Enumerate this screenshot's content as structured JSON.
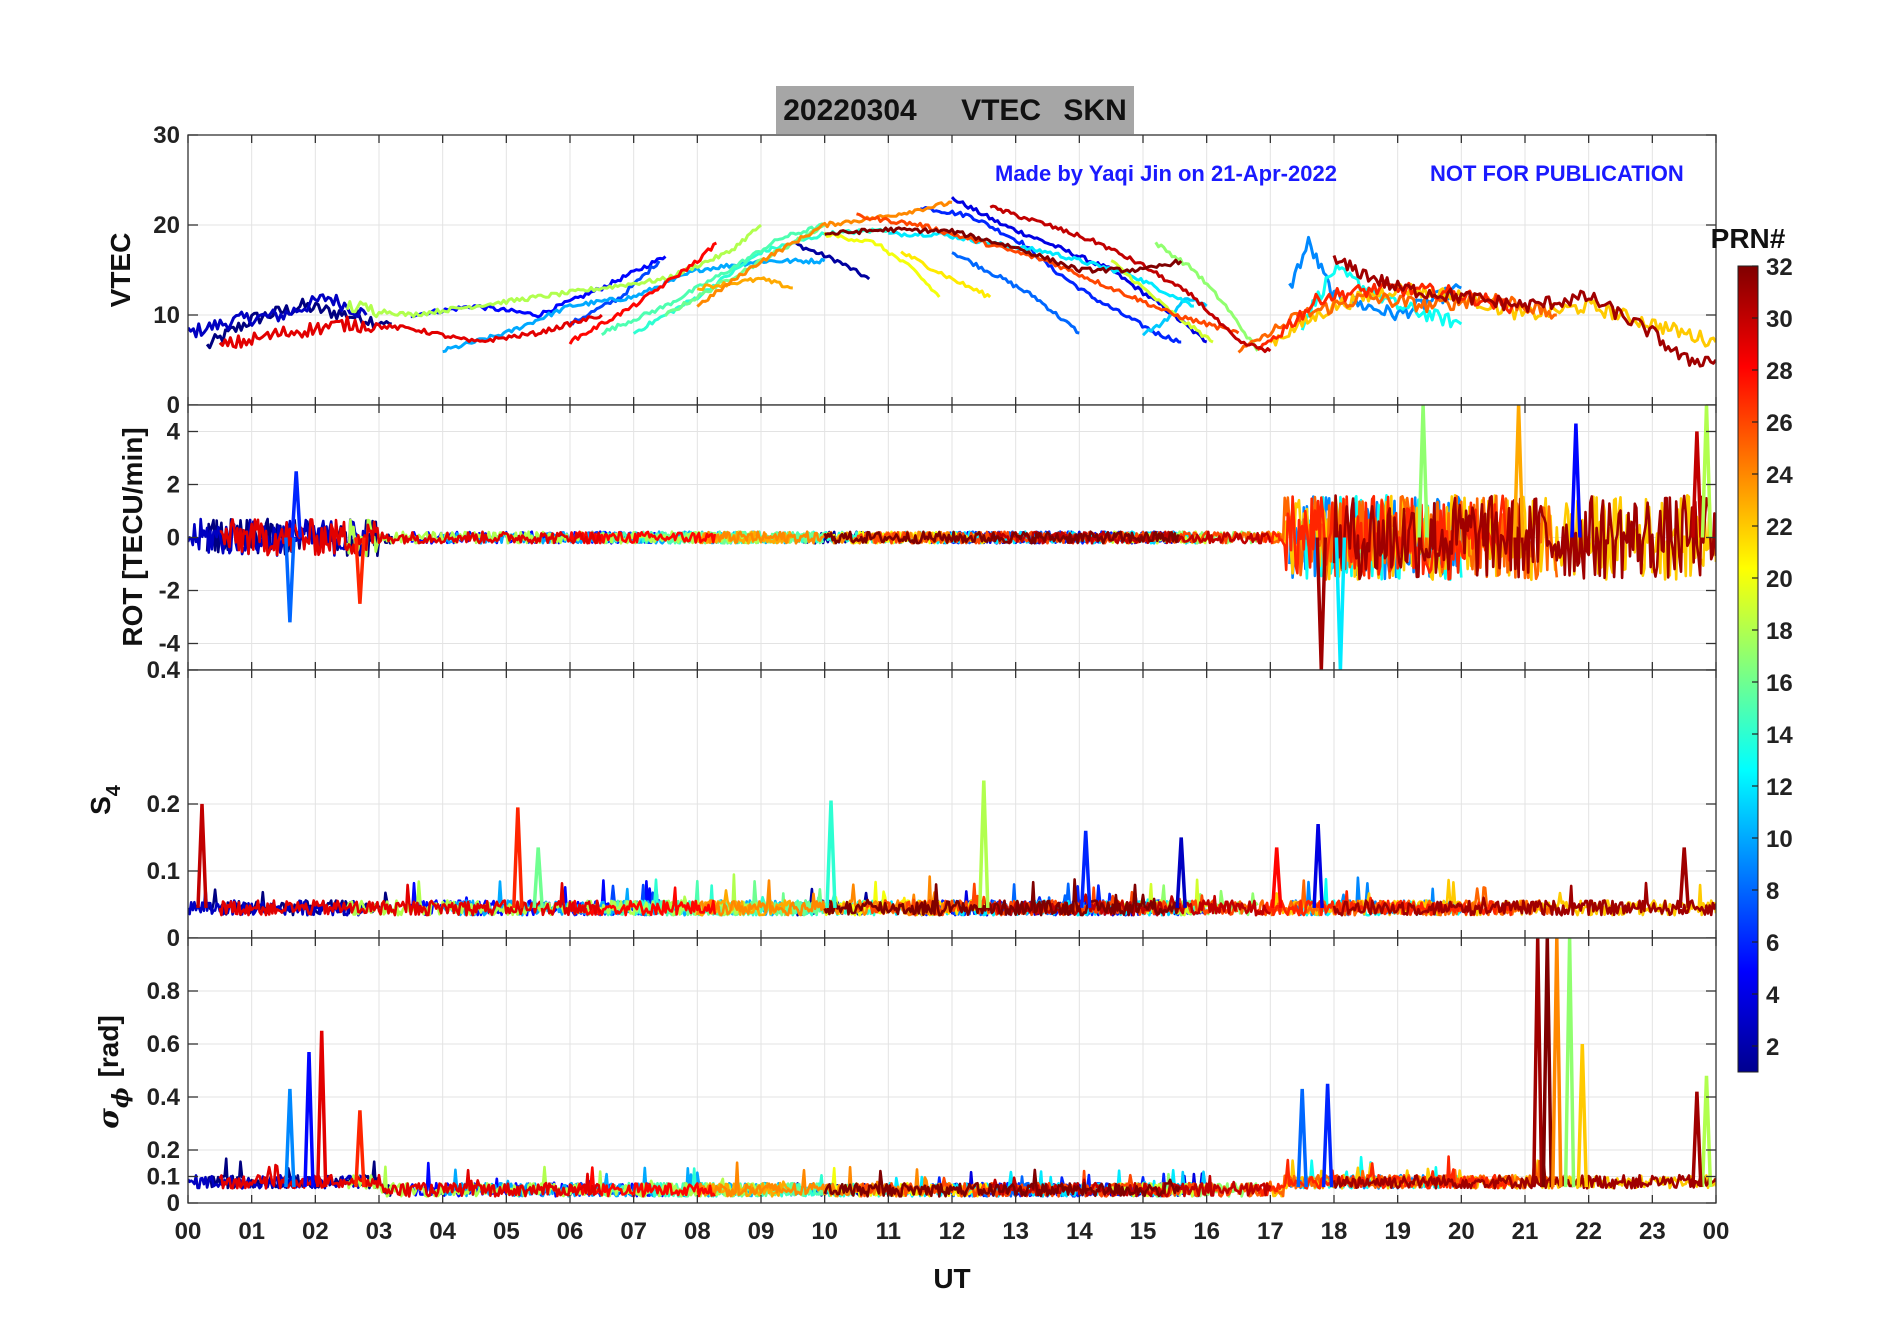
{
  "title": {
    "date": "20220304",
    "quantity": "VTEC",
    "station": "SKN",
    "background": "#a6a6a6"
  },
  "annotations": {
    "credit": "Made by Yaqi Jin on 21-Apr-2022",
    "disclaimer": "NOT FOR PUBLICATION",
    "color": "#1a1aff"
  },
  "colorbar": {
    "title": "PRN#",
    "ticks": [
      2,
      4,
      6,
      8,
      10,
      12,
      14,
      16,
      18,
      20,
      22,
      24,
      26,
      28,
      30,
      32
    ],
    "range": [
      1,
      32
    ],
    "colormap": "jet"
  },
  "chart_data": {
    "type": "line",
    "xlabel": "UT",
    "xlim": [
      0,
      24
    ],
    "x_tick_labels": [
      "00",
      "01",
      "02",
      "03",
      "04",
      "05",
      "06",
      "07",
      "08",
      "09",
      "10",
      "11",
      "12",
      "13",
      "14",
      "15",
      "16",
      "17",
      "18",
      "19",
      "20",
      "21",
      "22",
      "23",
      "00"
    ],
    "grid": true,
    "panels": [
      {
        "id": "vtec",
        "ylabel": "VTEC",
        "ylim": [
          0,
          30
        ],
        "y_ticks": [
          "0",
          "10",
          "20",
          "30"
        ],
        "y_tick_values": [
          0,
          10,
          20,
          30
        ]
      },
      {
        "id": "rot",
        "ylabel": "ROT [TECU/min]",
        "ylim": [
          -5,
          5
        ],
        "y_ticks": [
          "-4",
          "-2",
          "0",
          "2",
          "4"
        ],
        "y_tick_values": [
          -4,
          -2,
          0,
          2,
          4
        ]
      },
      {
        "id": "s4",
        "ylabel_main": "S",
        "ylabel_sub": "4",
        "ylim": [
          0,
          0.4
        ],
        "y_ticks": [
          "0",
          "0.1",
          "0.2",
          "0.4"
        ],
        "y_tick_values": [
          0,
          0.1,
          0.2,
          0.4
        ]
      },
      {
        "id": "sigma",
        "ylabel_main": "σ",
        "ylabel_sub": "ϕ",
        "ylabel_unit": "[rad]",
        "ylim": [
          0,
          1
        ],
        "y_ticks": [
          "0",
          "0.1",
          "0.2",
          "0.4",
          "0.6",
          "0.8"
        ],
        "y_tick_values": [
          0,
          0.1,
          0.2,
          0.4,
          0.6,
          0.8
        ]
      }
    ],
    "series": [
      {
        "prn": 1,
        "vtec": [
          [
            0.3,
            6.5
          ],
          [
            1.0,
            9.5
          ],
          [
            1.8,
            11
          ],
          [
            2.5,
            10
          ],
          [
            3.2,
            9
          ]
        ]
      },
      {
        "prn": 2,
        "vtec": [
          [
            9.5,
            18
          ],
          [
            10.2,
            16
          ],
          [
            10.7,
            14
          ]
        ]
      },
      {
        "prn": 3,
        "vtec": [
          [
            0.0,
            8
          ],
          [
            0.8,
            9.5
          ],
          [
            1.5,
            10
          ],
          [
            2.2,
            12
          ],
          [
            2.8,
            10
          ]
        ]
      },
      {
        "prn": 4,
        "vtec": [
          [
            12.0,
            23
          ],
          [
            12.8,
            20
          ],
          [
            13.5,
            18
          ],
          [
            14.5,
            15
          ],
          [
            15.3,
            11
          ],
          [
            16.0,
            7
          ]
        ]
      },
      {
        "prn": 5,
        "vtec": [
          [
            3.5,
            10
          ],
          [
            4.5,
            11
          ],
          [
            5.5,
            10
          ],
          [
            6.5,
            13
          ],
          [
            7.5,
            16.5
          ]
        ]
      },
      {
        "prn": 6,
        "vtec": [
          [
            11.5,
            22
          ],
          [
            12.3,
            21
          ],
          [
            13.1,
            18
          ],
          [
            13.6,
            15
          ],
          [
            14.2,
            12
          ],
          [
            15.2,
            8
          ],
          [
            15.6,
            7
          ]
        ]
      },
      {
        "prn": 7,
        "vtec": [
          [
            6.0,
            9
          ],
          [
            6.8,
            12
          ],
          [
            7.4,
            16
          ]
        ]
      },
      {
        "prn": 8,
        "vtec": [
          [
            12.0,
            17
          ],
          [
            12.8,
            14
          ],
          [
            13.3,
            12
          ],
          [
            14.0,
            8
          ]
        ]
      },
      {
        "prn": 9,
        "vtec": [
          [
            17.3,
            13
          ],
          [
            17.6,
            18
          ],
          [
            18.0,
            12
          ],
          [
            19.0,
            10
          ],
          [
            20.0,
            13
          ]
        ]
      },
      {
        "prn": 10,
        "vtec": [
          [
            4.0,
            6
          ],
          [
            5.0,
            8
          ],
          [
            6.0,
            11
          ],
          [
            7.0,
            12
          ],
          [
            8.0,
            15
          ],
          [
            9.0,
            16
          ],
          [
            10.0,
            16
          ]
        ]
      },
      {
        "prn": 11,
        "vtec": [
          [
            15.0,
            8
          ],
          [
            15.3,
            9
          ],
          [
            15.7,
            12
          ],
          [
            16.0,
            11
          ]
        ]
      },
      {
        "prn": 12,
        "vtec": [
          [
            11.0,
            19
          ],
          [
            11.8,
            19
          ],
          [
            12.6,
            18
          ],
          [
            13.5,
            17
          ],
          [
            14.8,
            14.5
          ],
          [
            15.8,
            11
          ]
        ]
      },
      {
        "prn": 13,
        "vtec": [
          [
            17.5,
            9
          ],
          [
            18.0,
            15
          ],
          [
            19.0,
            11
          ],
          [
            20.0,
            9
          ]
        ]
      },
      {
        "prn": 14,
        "vtec": [
          [
            7.0,
            8
          ],
          [
            8.0,
            12
          ],
          [
            9.0,
            17
          ],
          [
            10.0,
            19
          ],
          [
            11.0,
            19.5
          ]
        ]
      },
      {
        "prn": 15,
        "vtec": [
          [
            6.5,
            8
          ],
          [
            7.5,
            11
          ],
          [
            8.5,
            15
          ],
          [
            9.3,
            18.5
          ],
          [
            10.0,
            20
          ]
        ]
      },
      {
        "prn": 16,
        "vtec": [
          [
            7.5,
            10
          ],
          [
            8.5,
            14
          ],
          [
            9.5,
            18
          ],
          [
            10.0,
            20
          ]
        ]
      },
      {
        "prn": 17,
        "vtec": [
          [
            15.2,
            18
          ],
          [
            15.8,
            15
          ],
          [
            16.3,
            11
          ],
          [
            16.8,
            6
          ]
        ]
      },
      {
        "prn": 18,
        "vtec": [
          [
            2.5,
            11
          ],
          [
            3.5,
            10
          ],
          [
            4.5,
            11
          ],
          [
            5.5,
            12
          ],
          [
            6.5,
            13
          ],
          [
            7.5,
            14
          ],
          [
            8.5,
            17
          ],
          [
            9.0,
            20
          ]
        ]
      },
      {
        "prn": 19,
        "vtec": [
          [
            14.5,
            16
          ],
          [
            15.0,
            13
          ],
          [
            15.5,
            10
          ],
          [
            16.1,
            7
          ]
        ]
      },
      {
        "prn": 20,
        "vtec": [
          [
            10.0,
            19
          ],
          [
            10.8,
            18
          ],
          [
            11.4,
            15
          ],
          [
            11.8,
            12
          ]
        ]
      },
      {
        "prn": 21,
        "vtec": [
          [
            11.2,
            17
          ],
          [
            12.0,
            14
          ],
          [
            12.6,
            12
          ]
        ]
      },
      {
        "prn": 22,
        "vtec": [
          [
            17.0,
            7
          ],
          [
            18.0,
            11
          ],
          [
            19.0,
            13
          ],
          [
            20.0,
            12
          ],
          [
            21.0,
            10
          ],
          [
            22.0,
            11
          ],
          [
            23.0,
            9
          ],
          [
            24.0,
            7
          ]
        ]
      },
      {
        "prn": 23,
        "vtec": [
          [
            8.0,
            13
          ],
          [
            9.0,
            14
          ],
          [
            9.5,
            13
          ]
        ]
      },
      {
        "prn": 24,
        "vtec": [
          [
            8.0,
            11
          ],
          [
            9.0,
            16
          ],
          [
            10.0,
            20
          ],
          [
            11.0,
            21
          ],
          [
            12.0,
            22.5
          ]
        ]
      },
      {
        "prn": 25,
        "vtec": [
          [
            16.5,
            6
          ],
          [
            17.5,
            10
          ],
          [
            18.5,
            12
          ],
          [
            19.5,
            11
          ],
          [
            20.5,
            12
          ],
          [
            21.5,
            10
          ]
        ]
      },
      {
        "prn": 26,
        "vtec": [
          [
            10.5,
            21
          ],
          [
            11.5,
            20
          ],
          [
            12.5,
            18
          ],
          [
            13.5,
            16
          ],
          [
            14.5,
            13
          ],
          [
            15.5,
            10
          ],
          [
            16.5,
            8
          ]
        ]
      },
      {
        "prn": 27,
        "vtec": [
          [
            16.8,
            6
          ],
          [
            17.8,
            12
          ],
          [
            18.8,
            13
          ],
          [
            19.8,
            12.5
          ],
          [
            20.8,
            11
          ]
        ]
      },
      {
        "prn": 28,
        "vtec": [
          [
            6.0,
            7
          ],
          [
            7.0,
            11
          ],
          [
            8.0,
            16
          ],
          [
            8.3,
            18
          ]
        ]
      },
      {
        "prn": 29,
        "vtec": [
          [
            0.5,
            6.5
          ],
          [
            1.5,
            8
          ],
          [
            2.5,
            9
          ],
          [
            3.5,
            8.5
          ],
          [
            4.5,
            7
          ],
          [
            5.5,
            8
          ],
          [
            6.5,
            10
          ]
        ]
      },
      {
        "prn": 30,
        "vtec": [
          [
            12.6,
            22
          ],
          [
            13.5,
            20
          ],
          [
            14.3,
            18
          ],
          [
            15.0,
            15.5
          ],
          [
            15.8,
            12
          ],
          [
            16.5,
            7
          ],
          [
            17.0,
            6
          ]
        ]
      },
      {
        "prn": 31,
        "vtec": [
          [
            18.0,
            16
          ],
          [
            19.0,
            13
          ],
          [
            20.0,
            12
          ],
          [
            21.0,
            11
          ],
          [
            22.0,
            12
          ],
          [
            23.0,
            8
          ],
          [
            23.5,
            5
          ],
          [
            24.0,
            5
          ]
        ]
      },
      {
        "prn": 32,
        "vtec": [
          [
            10.0,
            19
          ],
          [
            11.0,
            19.5
          ],
          [
            12.0,
            19.3
          ],
          [
            13.0,
            17.5
          ],
          [
            14.0,
            15
          ],
          [
            15.0,
            15
          ],
          [
            15.6,
            16
          ]
        ]
      }
    ],
    "vtec_spans_note": "",
    "s4_spikes": [
      {
        "prn": 30,
        "t": 0.22,
        "v": 0.2
      },
      {
        "prn": 27,
        "t": 5.18,
        "v": 0.195
      },
      {
        "prn": 16,
        "t": 5.5,
        "v": 0.135
      },
      {
        "prn": 14,
        "t": 10.1,
        "v": 0.205
      },
      {
        "prn": 18,
        "t": 12.5,
        "v": 0.235
      },
      {
        "prn": 6,
        "t": 14.1,
        "v": 0.16
      },
      {
        "prn": 3,
        "t": 15.6,
        "v": 0.15
      },
      {
        "prn": 28,
        "t": 17.1,
        "v": 0.135
      },
      {
        "prn": 4,
        "t": 17.75,
        "v": 0.17
      },
      {
        "prn": 31,
        "t": 23.5,
        "v": 0.135
      }
    ],
    "sigma_spikes": [
      {
        "prn": 9,
        "t": 1.6,
        "v": 0.43
      },
      {
        "prn": 5,
        "t": 1.9,
        "v": 0.57
      },
      {
        "prn": 29,
        "t": 2.1,
        "v": 0.65
      },
      {
        "prn": 27,
        "t": 2.7,
        "v": 0.35
      },
      {
        "prn": 8,
        "t": 17.5,
        "v": 0.43
      },
      {
        "prn": 6,
        "t": 17.9,
        "v": 0.45
      },
      {
        "prn": 31,
        "t": 21.2,
        "v": 1.0
      },
      {
        "prn": 32,
        "t": 21.35,
        "v": 1.0
      },
      {
        "prn": 24,
        "t": 21.5,
        "v": 1.0
      },
      {
        "prn": 17,
        "t": 21.7,
        "v": 1.0
      },
      {
        "prn": 22,
        "t": 21.9,
        "v": 0.6
      },
      {
        "prn": 18,
        "t": 23.85,
        "v": 0.48
      },
      {
        "prn": 31,
        "t": 23.7,
        "v": 0.42
      }
    ],
    "rot_spikes": [
      {
        "prn": 8,
        "t": 1.6,
        "v": -3.2
      },
      {
        "prn": 6,
        "t": 1.7,
        "v": 2.5
      },
      {
        "prn": 27,
        "t": 2.7,
        "v": -2.5
      },
      {
        "prn": 31,
        "t": 17.8,
        "v": -5.0
      },
      {
        "prn": 12,
        "t": 18.1,
        "v": -5.0
      },
      {
        "prn": 17,
        "t": 19.4,
        "v": 5.0
      },
      {
        "prn": 23,
        "t": 20.9,
        "v": 5.0
      },
      {
        "prn": 5,
        "t": 21.8,
        "v": 4.3
      },
      {
        "prn": 30,
        "t": 23.7,
        "v": 4.0
      },
      {
        "prn": 18,
        "t": 23.85,
        "v": 5.0
      }
    ]
  }
}
